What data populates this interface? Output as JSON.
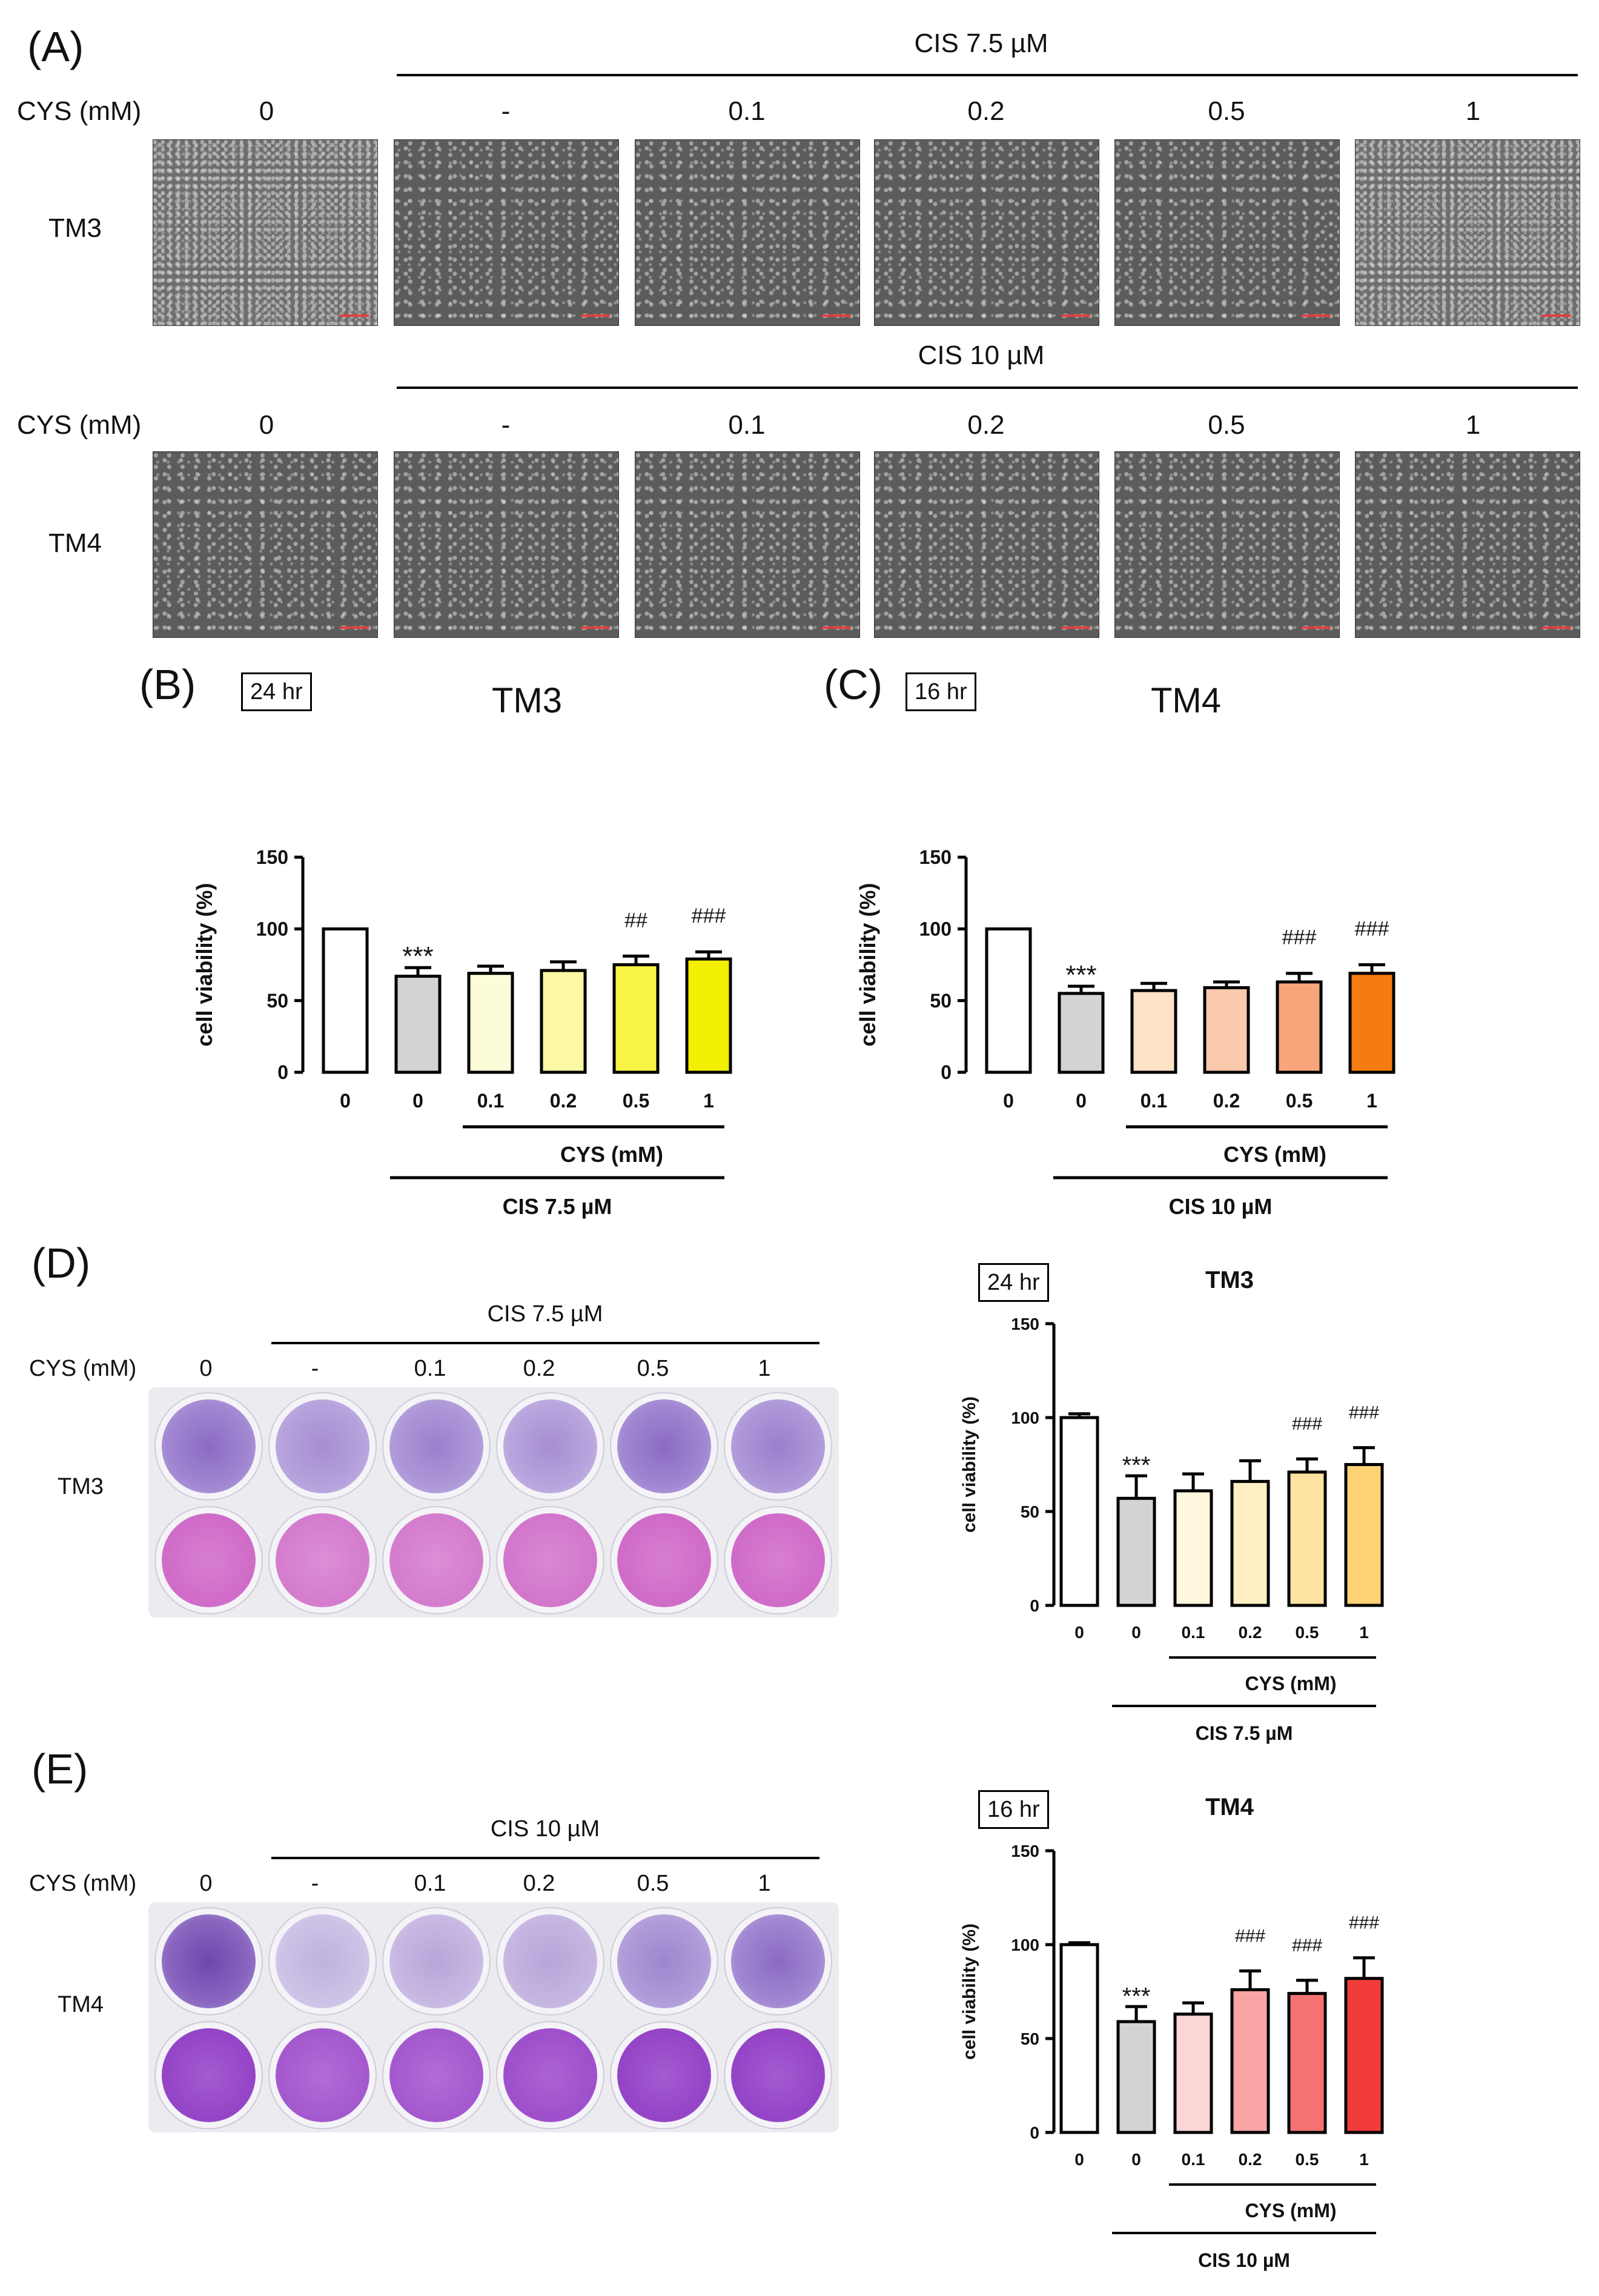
{
  "panel_A": {
    "label": "(A)",
    "cys_label": "CYS (mM)",
    "doses": [
      "0",
      "-",
      "0.1",
      "0.2",
      "0.5",
      "1"
    ],
    "rows": [
      {
        "cell_line": "TM3",
        "cis_label": "CIS 7.5 µM"
      },
      {
        "cell_line": "TM4",
        "cis_label": "CIS 10 µM"
      }
    ]
  },
  "panel_D": {
    "label": "(D)",
    "cys_label": "CYS (mM)",
    "cis_label": "CIS 7.5 µM",
    "doses": [
      "0",
      "-",
      "0.1",
      "0.2",
      "0.5",
      "1"
    ],
    "cell_line": "TM3"
  },
  "panel_E": {
    "label": "(E)",
    "cys_label": "CYS (mM)",
    "cis_label": "CIS 10 µM",
    "doses": [
      "0",
      "-",
      "0.1",
      "0.2",
      "0.5",
      "1"
    ],
    "cell_line": "TM4"
  },
  "chart_data": [
    {
      "id": "B",
      "panel_label": "(B)",
      "type": "bar",
      "time_tag": "24 hr",
      "title": "TM3",
      "ylabel": "cell viability (%)",
      "ylim": [
        0,
        150
      ],
      "yticks": [
        "0",
        "50",
        "100",
        "150"
      ],
      "categories": [
        "0",
        "0",
        "0.1",
        "0.2",
        "0.5",
        "1"
      ],
      "values": [
        100,
        67,
        69,
        71,
        75,
        79
      ],
      "errors": [
        0,
        6,
        5,
        6,
        6,
        5
      ],
      "annotations": [
        "",
        "***",
        "",
        "",
        "##",
        "###"
      ],
      "colors": [
        "#ffffff",
        "#d3d3d3",
        "#fdfcd8",
        "#fcf9a4",
        "#f8f446",
        "#f3ef00"
      ],
      "group_label_1": "CYS (mM)",
      "group_label_2": "CIS 7.5 µM"
    },
    {
      "id": "C",
      "panel_label": "(C)",
      "type": "bar",
      "time_tag": "16 hr",
      "title": "TM4",
      "ylabel": "cell viability (%)",
      "ylim": [
        0,
        150
      ],
      "yticks": [
        "0",
        "50",
        "100",
        "150"
      ],
      "categories": [
        "0",
        "0",
        "0.1",
        "0.2",
        "0.5",
        "1"
      ],
      "values": [
        100,
        55,
        57,
        59,
        63,
        69
      ],
      "errors": [
        0,
        5,
        5,
        4,
        6,
        6
      ],
      "annotations": [
        "",
        "***",
        "",
        "",
        "###",
        "###"
      ],
      "colors": [
        "#ffffff",
        "#d3d3d3",
        "#fde3c8",
        "#fbc9ac",
        "#f9a57c",
        "#f57c10"
      ],
      "group_label_1": "CYS (mM)",
      "group_label_2": "CIS 10 µM"
    },
    {
      "id": "D",
      "type": "bar",
      "time_tag": "24 hr",
      "title": "TM3",
      "ylabel": "cell viability (%)",
      "ylim": [
        0,
        150
      ],
      "yticks": [
        "0",
        "50",
        "100",
        "150"
      ],
      "categories": [
        "0",
        "0",
        "0.1",
        "0.2",
        "0.5",
        "1"
      ],
      "values": [
        100,
        57,
        61,
        66,
        71,
        75
      ],
      "errors": [
        2,
        12,
        9,
        11,
        7,
        9
      ],
      "annotations": [
        "",
        "***",
        "",
        "",
        "###",
        "###"
      ],
      "colors": [
        "#ffffff",
        "#d3d3d3",
        "#fff7de",
        "#ffefc2",
        "#ffe3a0",
        "#ffd274"
      ],
      "group_label_1": "CYS (mM)",
      "group_label_2": "CIS 7.5 µM"
    },
    {
      "id": "E",
      "type": "bar",
      "time_tag": "16 hr",
      "title": "TM4",
      "ylabel": "cell viability (%)",
      "ylim": [
        0,
        150
      ],
      "yticks": [
        "0",
        "50",
        "100",
        "150"
      ],
      "categories": [
        "0",
        "0",
        "0.1",
        "0.2",
        "0.5",
        "1"
      ],
      "values": [
        100,
        59,
        63,
        76,
        74,
        82
      ],
      "errors": [
        1,
        8,
        6,
        10,
        7,
        11
      ],
      "annotations": [
        "",
        "***",
        "",
        "###",
        "###",
        "###"
      ],
      "colors": [
        "#ffffff",
        "#d3d3d3",
        "#fcd6d6",
        "#f9a5a5",
        "#f67272",
        "#f23c3c"
      ],
      "group_label_1": "CYS (mM)",
      "group_label_2": "CIS 10 µM"
    }
  ]
}
